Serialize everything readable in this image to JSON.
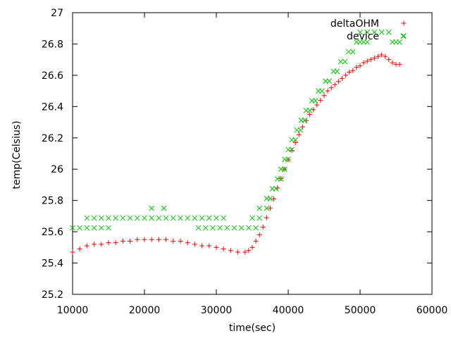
{
  "chart_data": {
    "type": "scatter",
    "title": "",
    "xlabel": "time(sec)",
    "ylabel": "temp(Celsius)",
    "xlim": [
      10000,
      60000
    ],
    "ylim": [
      25.2,
      27
    ],
    "xticks": [
      10000,
      20000,
      30000,
      40000,
      50000,
      60000
    ],
    "xtick_labels": [
      "10000",
      "20000",
      "30000",
      "40000",
      "50000",
      "60000"
    ],
    "yticks": [
      25.2,
      25.4,
      25.6,
      25.8,
      26,
      26.2,
      26.4,
      26.6,
      26.8,
      27
    ],
    "ytick_labels": [
      "25.2",
      "25.4",
      "25.6",
      "25.8",
      "26",
      "26.2",
      "26.4",
      "26.6",
      "26.8",
      "27"
    ],
    "grid": false,
    "legend_position": "top-right",
    "series": [
      {
        "name": "deltaOHM",
        "marker": "plus",
        "color": "#ff0000",
        "points": [
          [
            10000,
            25.47
          ],
          [
            11000,
            25.49
          ],
          [
            12000,
            25.51
          ],
          [
            13000,
            25.52
          ],
          [
            14000,
            25.52
          ],
          [
            15000,
            25.53
          ],
          [
            16000,
            25.53
          ],
          [
            17000,
            25.54
          ],
          [
            18000,
            25.54
          ],
          [
            19000,
            25.55
          ],
          [
            20000,
            25.55
          ],
          [
            21000,
            25.55
          ],
          [
            22000,
            25.55
          ],
          [
            23000,
            25.55
          ],
          [
            24000,
            25.54
          ],
          [
            25000,
            25.54
          ],
          [
            26000,
            25.53
          ],
          [
            27000,
            25.52
          ],
          [
            28000,
            25.51
          ],
          [
            29000,
            25.51
          ],
          [
            30000,
            25.5
          ],
          [
            31000,
            25.49
          ],
          [
            32000,
            25.48
          ],
          [
            33000,
            25.47
          ],
          [
            34000,
            25.47
          ],
          [
            34500,
            25.48
          ],
          [
            35000,
            25.5
          ],
          [
            35500,
            25.54
          ],
          [
            36000,
            25.58
          ],
          [
            36500,
            25.63
          ],
          [
            37000,
            25.69
          ],
          [
            37500,
            25.75
          ],
          [
            38000,
            25.81
          ],
          [
            38500,
            25.88
          ],
          [
            39000,
            25.94
          ],
          [
            39500,
            26.0
          ],
          [
            40000,
            26.06
          ],
          [
            40500,
            26.12
          ],
          [
            41000,
            26.17
          ],
          [
            41500,
            26.22
          ],
          [
            42000,
            26.27
          ],
          [
            42500,
            26.31
          ],
          [
            43000,
            26.35
          ],
          [
            43500,
            26.38
          ],
          [
            44000,
            26.41
          ],
          [
            44500,
            26.44
          ],
          [
            45000,
            26.47
          ],
          [
            45500,
            26.5
          ],
          [
            46000,
            26.52
          ],
          [
            46500,
            26.54
          ],
          [
            47000,
            26.56
          ],
          [
            47500,
            26.58
          ],
          [
            48000,
            26.6
          ],
          [
            48500,
            26.62
          ],
          [
            49000,
            26.63
          ],
          [
            49500,
            26.65
          ],
          [
            50000,
            26.66
          ],
          [
            50500,
            26.68
          ],
          [
            51000,
            26.69
          ],
          [
            51500,
            26.7
          ],
          [
            52000,
            26.71
          ],
          [
            52500,
            26.72
          ],
          [
            53000,
            26.73
          ],
          [
            53500,
            26.72
          ],
          [
            54000,
            26.7
          ],
          [
            54500,
            26.68
          ],
          [
            55000,
            26.67
          ],
          [
            55500,
            26.67
          ]
        ]
      },
      {
        "name": "device",
        "marker": "cross",
        "color": "#00c000",
        "points": [
          [
            10000,
            25.625
          ],
          [
            11000,
            25.625
          ],
          [
            12000,
            25.625
          ],
          [
            13000,
            25.625
          ],
          [
            14000,
            25.625
          ],
          [
            15000,
            25.625
          ],
          [
            12000,
            25.6875
          ],
          [
            13000,
            25.6875
          ],
          [
            14000,
            25.6875
          ],
          [
            15000,
            25.6875
          ],
          [
            16000,
            25.6875
          ],
          [
            17000,
            25.6875
          ],
          [
            18000,
            25.6875
          ],
          [
            19000,
            25.6875
          ],
          [
            20000,
            25.6875
          ],
          [
            21000,
            25.6875
          ],
          [
            22000,
            25.6875
          ],
          [
            23000,
            25.6875
          ],
          [
            24000,
            25.6875
          ],
          [
            25000,
            25.6875
          ],
          [
            26000,
            25.6875
          ],
          [
            27000,
            25.6875
          ],
          [
            28000,
            25.6875
          ],
          [
            29000,
            25.6875
          ],
          [
            30000,
            25.6875
          ],
          [
            31000,
            25.6875
          ],
          [
            21000,
            25.75
          ],
          [
            22700,
            25.75
          ],
          [
            27500,
            25.625
          ],
          [
            28500,
            25.625
          ],
          [
            29500,
            25.625
          ],
          [
            30500,
            25.625
          ],
          [
            31500,
            25.625
          ],
          [
            32500,
            25.625
          ],
          [
            33500,
            25.625
          ],
          [
            34500,
            25.625
          ],
          [
            35500,
            25.625
          ],
          [
            35000,
            25.6875
          ],
          [
            36000,
            25.6875
          ],
          [
            36000,
            25.75
          ],
          [
            37000,
            25.75
          ],
          [
            37000,
            25.8125
          ],
          [
            37500,
            25.8125
          ],
          [
            37800,
            25.875
          ],
          [
            38300,
            25.875
          ],
          [
            38500,
            25.9375
          ],
          [
            39000,
            25.9375
          ],
          [
            39000,
            26.0
          ],
          [
            39500,
            26.0
          ],
          [
            39500,
            26.0625
          ],
          [
            40000,
            26.0625
          ],
          [
            40000,
            26.125
          ],
          [
            40500,
            26.125
          ],
          [
            40500,
            26.1875
          ],
          [
            41000,
            26.1875
          ],
          [
            41200,
            26.25
          ],
          [
            41700,
            26.25
          ],
          [
            41800,
            26.3125
          ],
          [
            42300,
            26.3125
          ],
          [
            42500,
            26.375
          ],
          [
            43000,
            26.375
          ],
          [
            43300,
            26.4375
          ],
          [
            43800,
            26.4375
          ],
          [
            44200,
            26.5
          ],
          [
            44700,
            26.5
          ],
          [
            45200,
            26.5625
          ],
          [
            45700,
            26.5625
          ],
          [
            46300,
            26.625
          ],
          [
            46800,
            26.625
          ],
          [
            47300,
            26.6875
          ],
          [
            47900,
            26.6875
          ],
          [
            48400,
            26.75
          ],
          [
            49000,
            26.75
          ],
          [
            49500,
            26.8125
          ],
          [
            50000,
            26.8125
          ],
          [
            50500,
            26.8125
          ],
          [
            51000,
            26.8125
          ],
          [
            50000,
            26.875
          ],
          [
            51000,
            26.875
          ],
          [
            52000,
            26.875
          ],
          [
            53000,
            26.875
          ],
          [
            54000,
            26.875
          ],
          [
            54500,
            26.8125
          ],
          [
            55000,
            26.8125
          ],
          [
            55500,
            26.8125
          ],
          [
            56000,
            26.85
          ]
        ]
      }
    ]
  }
}
